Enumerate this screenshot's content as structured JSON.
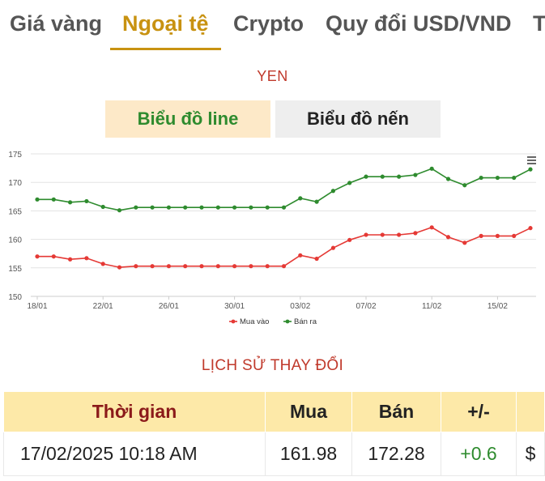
{
  "tabs": [
    {
      "label": "Giá vàng"
    },
    {
      "label": "Ngoại tệ"
    },
    {
      "label": "Crypto"
    },
    {
      "label": "Quy đổi USD/VND"
    },
    {
      "label": "T"
    }
  ],
  "active_tab_index": 1,
  "currency": "YEN",
  "chart_buttons": {
    "line": "Biểu đồ line",
    "candle": "Biểu đồ nến"
  },
  "colors": {
    "accent": "#c89211",
    "title_red": "#c0392b",
    "buy_series": "#e53935",
    "sell_series": "#2e8b2e"
  },
  "menu_icon": "hamburger-menu-icon",
  "chart_data": {
    "type": "line",
    "ylim": [
      150,
      175
    ],
    "yticks": [
      150,
      155,
      160,
      165,
      170,
      175
    ],
    "x_tick_labels": [
      "18/01",
      "22/01",
      "26/01",
      "30/01",
      "03/02",
      "07/02",
      "11/02",
      "15/02"
    ],
    "x_tick_indices": [
      0,
      4,
      8,
      12,
      16,
      20,
      24,
      28
    ],
    "grid": true,
    "legend_position": "bottom",
    "series": [
      {
        "name": "Mua vào",
        "color": "#e53935",
        "values": [
          157.0,
          157.0,
          156.5,
          156.7,
          155.7,
          155.1,
          155.3,
          155.3,
          155.3,
          155.3,
          155.3,
          155.3,
          155.3,
          155.3,
          155.3,
          155.3,
          157.2,
          156.6,
          158.5,
          159.9,
          160.8,
          160.8,
          160.8,
          161.1,
          162.1,
          160.4,
          159.4,
          160.6,
          160.6,
          160.6,
          161.98
        ]
      },
      {
        "name": "Bán ra",
        "color": "#2e8b2e",
        "values": [
          167.0,
          167.0,
          166.5,
          166.7,
          165.7,
          165.1,
          165.6,
          165.6,
          165.6,
          165.6,
          165.6,
          165.6,
          165.6,
          165.6,
          165.6,
          165.6,
          167.2,
          166.6,
          168.5,
          169.9,
          171.0,
          171.0,
          171.0,
          171.3,
          172.4,
          170.6,
          169.5,
          170.8,
          170.8,
          170.8,
          172.28
        ]
      }
    ]
  },
  "history": {
    "title": "LỊCH SỬ THAY ĐỔI",
    "headers": {
      "time": "Thời gian",
      "buy": "Mua",
      "sell": "Bán",
      "change": "+/-"
    },
    "rows": [
      {
        "time": "17/02/2025 10:18 AM",
        "buy": "161.98",
        "sell": "172.28",
        "change": "+0.6",
        "extra": "$"
      }
    ]
  }
}
